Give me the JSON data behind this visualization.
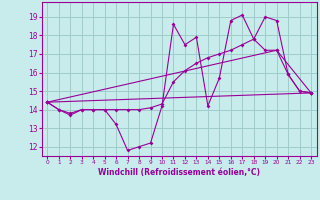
{
  "xlabel": "Windchill (Refroidissement éolien,°C)",
  "xlim": [
    -0.5,
    23.5
  ],
  "ylim": [
    11.5,
    19.8
  ],
  "xticks": [
    0,
    1,
    2,
    3,
    4,
    5,
    6,
    7,
    8,
    9,
    10,
    11,
    12,
    13,
    14,
    15,
    16,
    17,
    18,
    19,
    20,
    21,
    22,
    23
  ],
  "yticks": [
    12,
    13,
    14,
    15,
    16,
    17,
    18,
    19
  ],
  "bg_color": "#c8ecec",
  "grid_color": "#a0cccc",
  "line_color": "#990099",
  "lines": [
    {
      "x": [
        0,
        1,
        2,
        3,
        4,
        5,
        6,
        7,
        8,
        9,
        10,
        11,
        12,
        13,
        14,
        15,
        16,
        17,
        18,
        19,
        20,
        21,
        22,
        23
      ],
      "y": [
        14.4,
        14.0,
        13.7,
        14.0,
        14.0,
        14.0,
        13.2,
        11.8,
        12.0,
        12.2,
        14.2,
        18.6,
        17.5,
        17.9,
        14.2,
        15.7,
        18.8,
        19.1,
        17.8,
        19.0,
        18.8,
        15.9,
        15.0,
        14.9
      ]
    },
    {
      "x": [
        0,
        1,
        2,
        3,
        4,
        5,
        6,
        7,
        8,
        9,
        10,
        11,
        12,
        13,
        14,
        15,
        16,
        17,
        18,
        19,
        20,
        21,
        22,
        23
      ],
      "y": [
        14.4,
        14.0,
        13.8,
        14.0,
        14.0,
        14.0,
        14.0,
        14.0,
        14.0,
        14.1,
        14.3,
        15.5,
        16.1,
        16.5,
        16.8,
        17.0,
        17.2,
        17.5,
        17.8,
        17.2,
        17.2,
        15.9,
        15.0,
        14.9
      ]
    },
    {
      "x": [
        0,
        23
      ],
      "y": [
        14.4,
        14.9
      ]
    },
    {
      "x": [
        0,
        20,
        23
      ],
      "y": [
        14.4,
        17.2,
        14.9
      ]
    }
  ]
}
